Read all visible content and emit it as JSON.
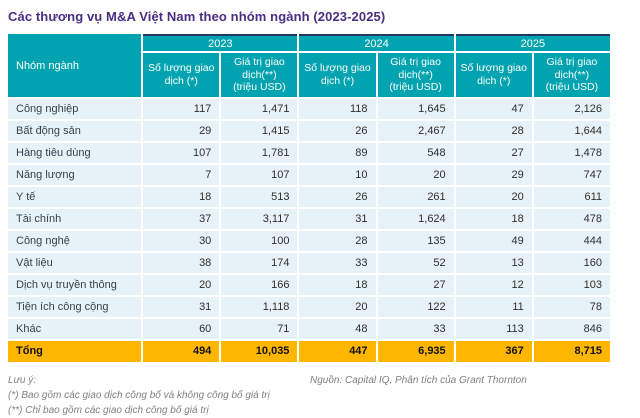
{
  "title": "Các thương vụ M&A Việt Nam theo nhóm ngành (2023-2025)",
  "table": {
    "row_header_label": "Nhóm ngành",
    "year_groups": [
      "2023",
      "2024",
      "2025"
    ],
    "sub_headers": {
      "count": "Số lượng giao\ndịch (*)",
      "value": "Giá trị giao\ndịch(**)\n(triệu USD)"
    },
    "rows": [
      {
        "label": "Công nghiệp",
        "values": [
          "117",
          "1,471",
          "118",
          "1,645",
          "47",
          "2,126"
        ]
      },
      {
        "label": "Bất động sản",
        "values": [
          "29",
          "1,415",
          "26",
          "2,467",
          "28",
          "1,644"
        ]
      },
      {
        "label": "Hàng tiêu dùng",
        "values": [
          "107",
          "1,781",
          "89",
          "548",
          "27",
          "1,478"
        ]
      },
      {
        "label": "Năng lượng",
        "values": [
          "7",
          "107",
          "10",
          "20",
          "29",
          "747"
        ]
      },
      {
        "label": "Y tế",
        "values": [
          "18",
          "513",
          "26",
          "261",
          "20",
          "611"
        ]
      },
      {
        "label": "Tài chính",
        "values": [
          "37",
          "3,117",
          "31",
          "1,624",
          "18",
          "478"
        ]
      },
      {
        "label": "Công nghệ",
        "values": [
          "30",
          "100",
          "28",
          "135",
          "49",
          "444"
        ]
      },
      {
        "label": "Vật liệu",
        "values": [
          "38",
          "174",
          "33",
          "52",
          "13",
          "160"
        ]
      },
      {
        "label": "Dịch vụ truyền thông",
        "values": [
          "20",
          "166",
          "18",
          "27",
          "12",
          "103"
        ]
      },
      {
        "label": "Tiện ích công cộng",
        "values": [
          "31",
          "1,118",
          "20",
          "122",
          "11",
          "78"
        ]
      },
      {
        "label": "Khác",
        "values": [
          "60",
          "71",
          "48",
          "33",
          "113",
          "846"
        ]
      }
    ],
    "total": {
      "label": "Tổng",
      "values": [
        "494",
        "10,035",
        "447",
        "6,935",
        "367",
        "8,715"
      ]
    }
  },
  "footnotes": {
    "label": "Lưu ý:",
    "note1": "(*) Bao gồm các giao dịch công bố và không công bố giá trị",
    "note2": "(**) Chỉ bao gồm các giao dịch công bố giá trị"
  },
  "source": "Nguồn: Capital IQ, Phân tích của Grant Thornton",
  "colors": {
    "header_teal": "#00A3AF",
    "row_light_blue": "#E7F2F8",
    "total_yellow": "#FFB600",
    "header_top_border_navy": "#1F3864",
    "title_purple": "#4A2E83"
  },
  "chart_data": {
    "type": "table",
    "title": "Các thương vụ M&A Việt Nam theo nhóm ngành (2023-2025)",
    "categories": [
      "Công nghiệp",
      "Bất động sản",
      "Hàng tiêu dùng",
      "Năng lượng",
      "Y tế",
      "Tài chính",
      "Công nghệ",
      "Vật liệu",
      "Dịch vụ truyền thông",
      "Tiện ích công cộng",
      "Khác"
    ],
    "series": [
      {
        "name": "2023 Số lượng giao dịch (*)",
        "values": [
          117,
          29,
          107,
          7,
          18,
          37,
          30,
          38,
          20,
          31,
          60
        ]
      },
      {
        "name": "2023 Giá trị giao dịch (**) (triệu USD)",
        "values": [
          1471,
          1415,
          1781,
          107,
          513,
          3117,
          100,
          174,
          166,
          1118,
          71
        ]
      },
      {
        "name": "2024 Số lượng giao dịch (*)",
        "values": [
          118,
          26,
          89,
          10,
          26,
          31,
          28,
          33,
          18,
          20,
          48
        ]
      },
      {
        "name": "2024 Giá trị giao dịch (**) (triệu USD)",
        "values": [
          1645,
          2467,
          548,
          20,
          261,
          1624,
          135,
          52,
          27,
          122,
          33
        ]
      },
      {
        "name": "2025 Số lượng giao dịch (*)",
        "values": [
          47,
          28,
          27,
          29,
          20,
          18,
          49,
          13,
          12,
          11,
          113
        ]
      },
      {
        "name": "2025 Giá trị giao dịch (**) (triệu USD)",
        "values": [
          2126,
          1644,
          1478,
          747,
          611,
          478,
          444,
          160,
          103,
          78,
          846
        ]
      }
    ],
    "totals": {
      "label": "Tổng",
      "values": [
        494,
        10035,
        447,
        6935,
        367,
        8715
      ]
    }
  }
}
